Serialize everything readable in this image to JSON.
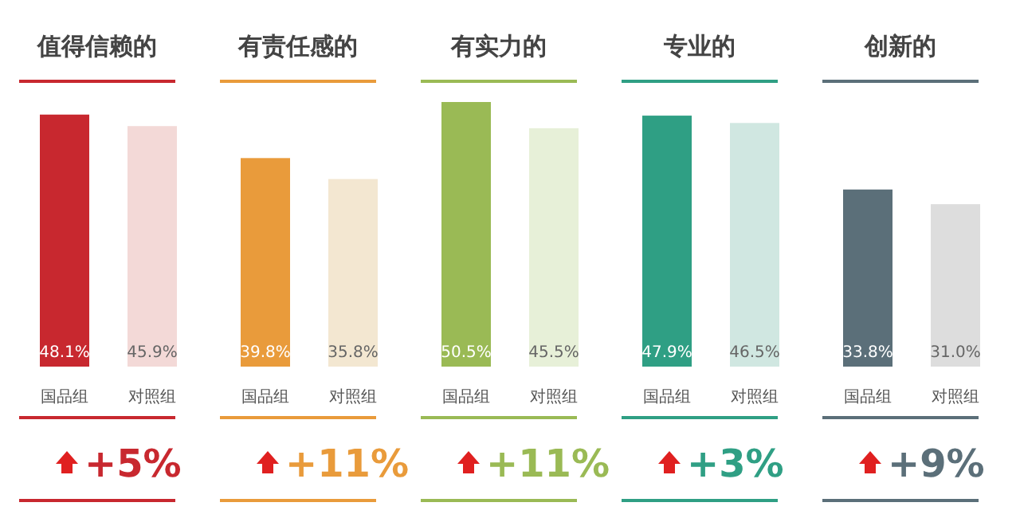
{
  "chart_data": [
    {
      "type": "bar",
      "title": "值得信赖的",
      "categories": [
        "国品组",
        "对照组"
      ],
      "values": [
        48.1,
        45.9
      ],
      "colors": [
        "#c8282f",
        "#f3d9d7"
      ],
      "value_labels": [
        "48.1%",
        "45.9%"
      ],
      "annotations": [
        "+5%"
      ]
    },
    {
      "type": "bar",
      "title": "有责任感的",
      "categories": [
        "国品组",
        "对照组"
      ],
      "values": [
        39.8,
        35.8
      ],
      "colors": [
        "#e99b3b",
        "#f3e7d1"
      ],
      "value_labels": [
        "39.8%",
        "35.8%"
      ],
      "annotations": [
        "+11%"
      ]
    },
    {
      "type": "bar",
      "title": "有实力的",
      "categories": [
        "国品组",
        "对照组"
      ],
      "values": [
        50.5,
        45.5
      ],
      "colors": [
        "#9aba55",
        "#e7f0d8"
      ],
      "value_labels": [
        "50.5%",
        "45.5%"
      ],
      "annotations": [
        "+11%"
      ]
    },
    {
      "type": "bar",
      "title": "专业的",
      "categories": [
        "国品组",
        "对照组"
      ],
      "values": [
        47.9,
        46.5
      ],
      "colors": [
        "#2f9f84",
        "#d0e7e1"
      ],
      "value_labels": [
        "47.9%",
        "46.5%"
      ],
      "annotations": [
        "+3%"
      ]
    },
    {
      "type": "bar",
      "title": "创新的",
      "categories": [
        "国品组",
        "对照组"
      ],
      "values": [
        33.8,
        31.0
      ],
      "colors": [
        "#5b6f79",
        "#dddddd"
      ],
      "value_labels": [
        "33.8%",
        "31.0%"
      ],
      "annotations": [
        "+9%"
      ]
    }
  ]
}
